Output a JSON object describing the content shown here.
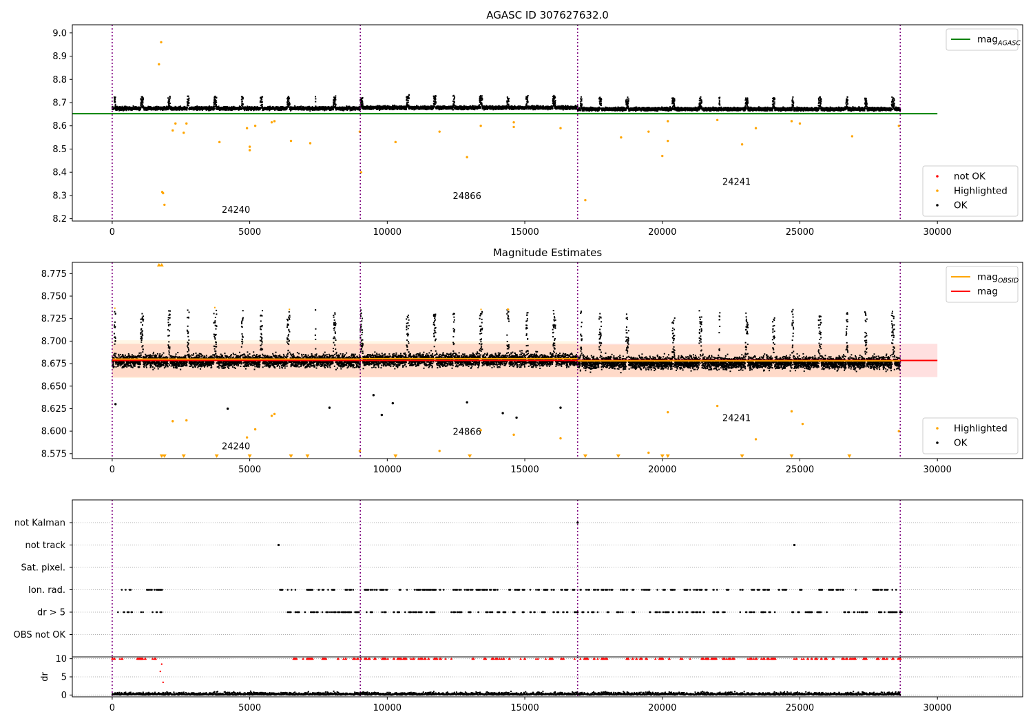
{
  "chart_data": [
    {
      "type": "scatter",
      "title": "AGASC ID 307627632.0",
      "xlim": [
        -1450,
        33100
      ],
      "ylim": [
        8.19,
        9.035
      ],
      "xticks": [
        0,
        5000,
        10000,
        15000,
        20000,
        25000,
        30000
      ],
      "yticks": [
        8.2,
        8.3,
        8.4,
        8.5,
        8.6,
        8.7,
        8.8,
        8.9,
        9.0
      ],
      "ytick_labels": [
        "8.2",
        "8.3",
        "8.4",
        "8.5",
        "8.6",
        "8.7",
        "8.8",
        "8.9",
        "9.0"
      ],
      "obsid_boundaries": [
        0,
        9020,
        16920,
        28650
      ],
      "obsid_labels": [
        {
          "text": "24240",
          "x": 4500,
          "y": 8.225
        },
        {
          "text": "24866",
          "x": 12900,
          "y": 8.285
        },
        {
          "text": "24241",
          "x": 22700,
          "y": 8.345
        }
      ],
      "line_series": [
        {
          "name": "mag_AGASC",
          "color": "#008000",
          "x": [
            -1450,
            30000
          ],
          "y": [
            8.652,
            8.652
          ]
        }
      ],
      "point_series": [
        {
          "name": "not OK",
          "color": "#ff0000",
          "x": [],
          "y": []
        },
        {
          "name": "Highlighted",
          "color": "#ffa500",
          "x": [
            1700,
            1780,
            1820,
            1850,
            1900,
            2200,
            2300,
            2600,
            2700,
            3900,
            4900,
            5000,
            5000,
            5200,
            5800,
            5900,
            6500,
            7200,
            9000,
            9050,
            10300,
            11900,
            12900,
            13400,
            14600,
            14600,
            16300,
            17200,
            18500,
            19500,
            20000,
            20200,
            20200,
            22000,
            22900,
            23400,
            24700,
            25000,
            26900,
            28600
          ],
          "y": [
            8.865,
            8.96,
            8.315,
            8.31,
            8.26,
            8.58,
            8.61,
            8.57,
            8.61,
            8.53,
            8.59,
            8.51,
            8.495,
            8.6,
            8.615,
            8.62,
            8.535,
            8.525,
            8.575,
            8.4,
            8.53,
            8.575,
            8.465,
            8.6,
            8.615,
            8.595,
            8.59,
            8.28,
            8.55,
            8.575,
            8.47,
            8.62,
            8.535,
            8.625,
            8.52,
            8.59,
            8.62,
            8.61,
            8.555,
            8.6
          ]
        }
      ],
      "legends": [
        {
          "position": "upper right",
          "entries": [
            {
              "label": "mag",
              "sub": "AGASC",
              "marker": "line",
              "color": "#008000"
            }
          ]
        },
        {
          "position": "lower right",
          "entries": [
            {
              "label": "not OK",
              "marker": "dot",
              "color": "#ff0000"
            },
            {
              "label": "Highlighted",
              "marker": "dot",
              "color": "#ffa500"
            },
            {
              "label": "OK",
              "marker": "dot",
              "color": "#000000"
            }
          ]
        }
      ]
    },
    {
      "type": "scatter",
      "title": "Magnitude Estimates",
      "xlim": [
        -1450,
        33100
      ],
      "ylim": [
        8.5695,
        8.7875
      ],
      "xticks": [
        0,
        5000,
        10000,
        15000,
        20000,
        25000,
        30000
      ],
      "yticks": [
        8.575,
        8.6,
        8.625,
        8.65,
        8.675,
        8.7,
        8.725,
        8.75,
        8.775
      ],
      "ytick_labels": [
        "8.575",
        "8.600",
        "8.625",
        "8.650",
        "8.675",
        "8.700",
        "8.725",
        "8.750",
        "8.775"
      ],
      "obsid_boundaries": [
        0,
        9020,
        16920,
        28650
      ],
      "obsid_labels": [
        {
          "text": "24240",
          "x": 4500,
          "y": 8.58
        },
        {
          "text": "24866",
          "x": 12900,
          "y": 8.596
        },
        {
          "text": "24241",
          "x": 22700,
          "y": 8.611
        }
      ],
      "bands": [
        {
          "color": "#ff0000",
          "opacity": 0.12,
          "x": [
            0,
            30000
          ],
          "y": [
            8.66,
            8.697
          ]
        },
        {
          "color": "#ffa500",
          "opacity": 0.1,
          "x": [
            0,
            9020
          ],
          "y": [
            8.659,
            8.701
          ]
        },
        {
          "color": "#ffa500",
          "opacity": 0.1,
          "x": [
            9020,
            16920
          ],
          "y": [
            8.66,
            8.7
          ]
        },
        {
          "color": "#ffa500",
          "opacity": 0.1,
          "x": [
            16920,
            28650
          ],
          "y": [
            8.66,
            8.696
          ]
        }
      ],
      "line_series": [
        {
          "name": "mag",
          "color": "#ff0000",
          "x": [
            0,
            30000
          ],
          "y": [
            8.6785,
            8.6785
          ]
        },
        {
          "name": "mag_OBSID 24240",
          "color": "#ffa500",
          "x": [
            0,
            9020
          ],
          "y": [
            8.68,
            8.68
          ]
        },
        {
          "name": "mag_OBSID 24866",
          "color": "#ffa500",
          "x": [
            9020,
            16920
          ],
          "y": [
            8.6805,
            8.6805
          ]
        },
        {
          "name": "mag_OBSID 24241",
          "color": "#ffa500",
          "x": [
            16920,
            28650
          ],
          "y": [
            8.678,
            8.678
          ]
        }
      ],
      "point_series": [
        {
          "name": "Highlighted",
          "color": "#ffa500",
          "x": [
            2200,
            2700,
            4900,
            5200,
            5800,
            5900,
            9000,
            11900,
            13400,
            14600,
            16300,
            19500,
            20200,
            22000,
            23400,
            24700,
            25100,
            28600
          ],
          "y": [
            8.611,
            8.612,
            8.593,
            8.602,
            8.617,
            8.619,
            8.578,
            8.578,
            8.601,
            8.596,
            8.592,
            8.576,
            8.621,
            8.628,
            8.591,
            8.622,
            8.608,
            8.6
          ]
        },
        {
          "name": "OK",
          "color": "#000000",
          "x": [
            120,
            4200,
            7900,
            9500,
            9800,
            10200,
            12900,
            14200,
            14700,
            16300
          ],
          "y": [
            8.63,
            8.625,
            8.626,
            8.64,
            8.618,
            8.631,
            8.632,
            8.62,
            8.615,
            8.626
          ]
        }
      ],
      "clipped_low_markers_x": [
        1800,
        1900,
        2600,
        3800,
        5000,
        6500,
        7100,
        10300,
        13000,
        17200,
        18400,
        20000,
        20200,
        22900,
        24700,
        26800
      ],
      "clipped_high_markers_x": [
        1700,
        1800
      ],
      "legends": [
        {
          "position": "upper right",
          "entries": [
            {
              "label": "mag",
              "sub": "OBSID",
              "marker": "line",
              "color": "#ffa500"
            },
            {
              "label": "mag",
              "marker": "line",
              "color": "#ff0000"
            }
          ]
        },
        {
          "position": "lower right",
          "entries": [
            {
              "label": "Highlighted",
              "marker": "dot",
              "color": "#ffa500"
            },
            {
              "label": "OK",
              "marker": "dot",
              "color": "#000000"
            }
          ]
        }
      ]
    },
    {
      "type": "scatter",
      "title": "",
      "xlim": [
        -1450,
        33100
      ],
      "categories": [
        "not Kalman",
        "not track",
        "Sat. pixel.",
        "Ion. rad.",
        "dr > 5",
        "OBS not OK"
      ],
      "xticks": [],
      "obsid_boundaries": [
        0,
        9020,
        16920,
        28650
      ],
      "flags": [
        {
          "category": "not Kalman",
          "x": [
            16920
          ]
        },
        {
          "category": "not track",
          "x": [
            6050,
            24800
          ]
        },
        {
          "category": "Sat. pixel.",
          "x": []
        },
        {
          "category": "Ion. rad.",
          "x_ranges": [
            [
              0,
              1800
            ],
            [
              6100,
              28650
            ]
          ]
        },
        {
          "category": "dr > 5",
          "x_ranges": [
            [
              0,
              1800
            ],
            [
              6100,
              28650
            ]
          ]
        },
        {
          "category": "OBS not OK",
          "x": []
        }
      ]
    },
    {
      "type": "scatter",
      "title": "",
      "ylabel": "dr",
      "xlim": [
        -1450,
        33100
      ],
      "ylim": [
        -0.5,
        10.5
      ],
      "xticks": [
        0,
        5000,
        10000,
        15000,
        20000,
        25000,
        30000
      ],
      "yticks": [
        0,
        5,
        10
      ],
      "ytick_labels": [
        "0",
        "5",
        "10"
      ],
      "obsid_boundaries": [
        0,
        9020,
        16920,
        28650
      ],
      "point_series": [
        {
          "name": "dr",
          "color": "#000000",
          "x_range": [
            0,
            28650
          ],
          "y_range": [
            0,
            1.2
          ]
        },
        {
          "name": "dr > 5",
          "color": "#ff0000",
          "x_ranges": [
            [
              0,
              1800
            ],
            [
              6100,
              28650
            ]
          ],
          "y": 10,
          "extra_x": [
            1750,
            1800,
            1850
          ],
          "extra_y": [
            6.5,
            8.5,
            3.5
          ]
        }
      ]
    }
  ],
  "xtick_labels": [
    "0",
    "5000",
    "10000",
    "15000",
    "20000",
    "25000",
    "30000"
  ]
}
